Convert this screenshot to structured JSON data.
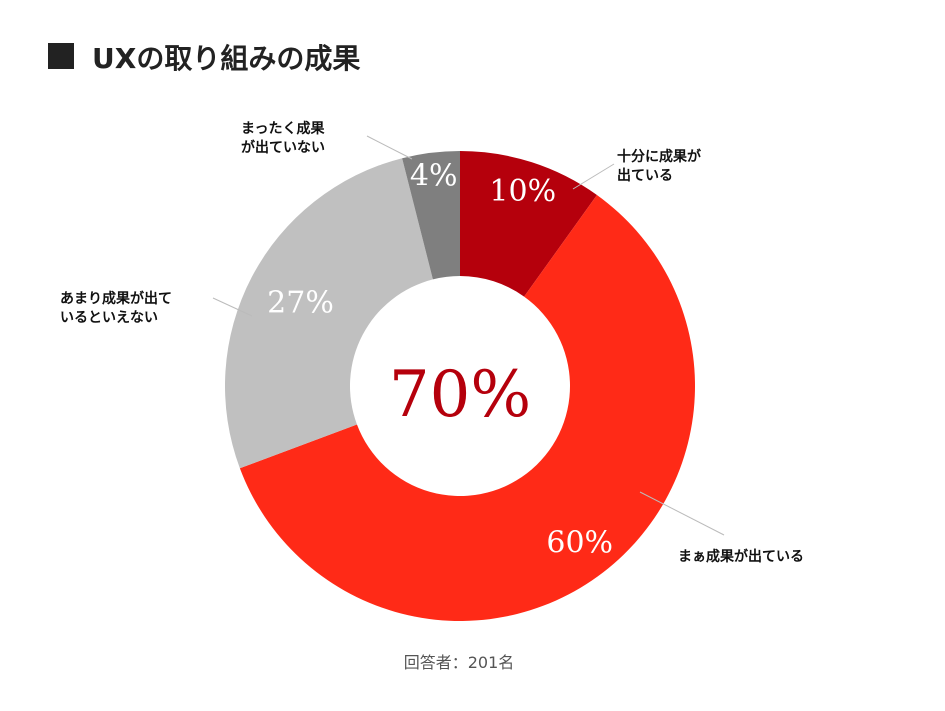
{
  "title": "UXの取り組みの成果",
  "footnote": "回答者：201名",
  "chart_data": {
    "type": "pie",
    "title": "UXの取り組みの成果",
    "center_value": "70%",
    "categories": [
      "十分に成果が出ている",
      "まぁ成果が出ている",
      "あまり成果が出ているといえない",
      "まったく成果が出ていない"
    ],
    "label_lines": [
      [
        "十分に成果が",
        "出ている"
      ],
      [
        "まぁ成果が出ている"
      ],
      [
        "あまり成果が出て",
        "いるといえない"
      ],
      [
        "まったく成果",
        "が出ていない"
      ]
    ],
    "values": [
      10,
      60,
      27,
      4
    ],
    "percent_labels": [
      "10%",
      "60%",
      "27%",
      "4%"
    ],
    "colors": [
      "#b5000c",
      "#ff2a17",
      "#c0c0c0",
      "#7f7f7f"
    ],
    "legend": "none"
  }
}
